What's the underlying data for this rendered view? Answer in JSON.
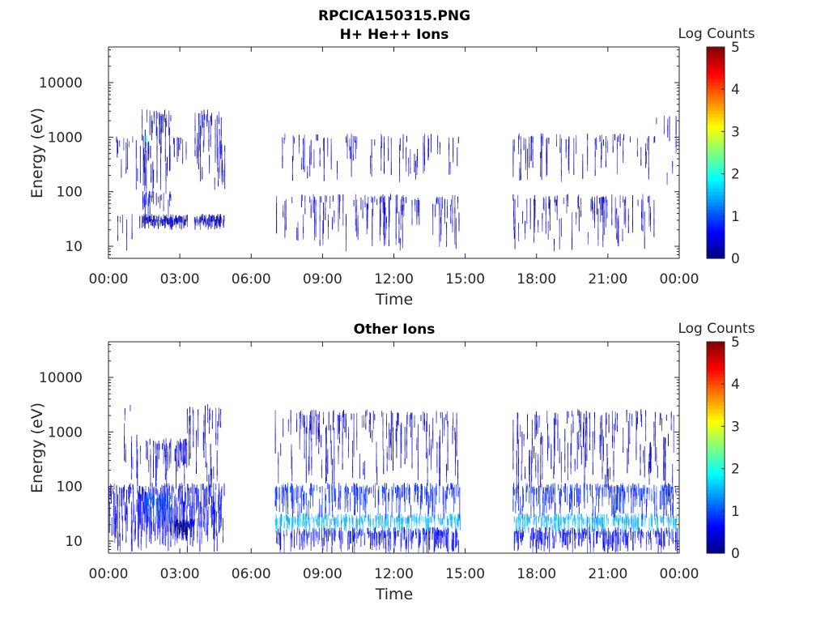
{
  "figure": {
    "title": "RPCICA150315.PNG"
  },
  "chart_data": [
    {
      "type": "heatmap",
      "title": "H+ He++ Ions",
      "xlabel": "Time",
      "ylabel": "Energy (eV)",
      "x_ticks": [
        "00:00",
        "03:00",
        "06:00",
        "09:00",
        "12:00",
        "15:00",
        "18:00",
        "21:00",
        "00:00"
      ],
      "xlim_hours": [
        0,
        24
      ],
      "y_scale": "log",
      "ylim": [
        6,
        45000
      ],
      "y_ticks": [
        10,
        100,
        1000,
        10000
      ],
      "y_tick_labels": [
        "10",
        "100",
        "1000",
        "10000"
      ],
      "colorbar": {
        "label": "Log Counts",
        "range": [
          0,
          5
        ],
        "ticks": [
          "0",
          "1",
          "2",
          "3",
          "4",
          "5"
        ],
        "colormap": "jet"
      },
      "blocks": [
        {
          "t": [
            0.3,
            1.4
          ],
          "e": [
            90,
            800
          ],
          "v": 0.4,
          "density": 0.35
        },
        {
          "t": [
            0.3,
            1.4
          ],
          "e": [
            8,
            30
          ],
          "v": 0.3,
          "density": 0.25
        },
        {
          "t": [
            1.4,
            2.6
          ],
          "e": [
            20,
            30
          ],
          "v": 0.25,
          "density": 0.95
        },
        {
          "t": [
            1.4,
            2.6
          ],
          "e": [
            30,
            80
          ],
          "v": 0.5,
          "density": 0.5
        },
        {
          "t": [
            1.4,
            2.6
          ],
          "e": [
            90,
            2500
          ],
          "v": 0.2,
          "density": 0.75
        },
        {
          "t": [
            1.5,
            1.6
          ],
          "e": [
            500,
            900
          ],
          "v": 2.0,
          "density": 0.8
        },
        {
          "t": [
            2.6,
            3.3
          ],
          "e": [
            20,
            30
          ],
          "v": 0.3,
          "density": 0.9
        },
        {
          "t": [
            2.6,
            3.3
          ],
          "e": [
            300,
            800
          ],
          "v": 0.4,
          "density": 0.3
        },
        {
          "t": [
            3.6,
            4.9
          ],
          "e": [
            20,
            30
          ],
          "v": 0.3,
          "density": 0.9
        },
        {
          "t": [
            3.6,
            4.9
          ],
          "e": [
            100,
            2500
          ],
          "v": 0.3,
          "density": 0.7
        },
        {
          "t": [
            7.0,
            14.8
          ],
          "e": [
            8,
            70
          ],
          "v": 0.35,
          "density": 0.28
        },
        {
          "t": [
            7.0,
            14.8
          ],
          "e": [
            150,
            900
          ],
          "v": 0.3,
          "density": 0.22
        },
        {
          "t": [
            17.0,
            23.0
          ],
          "e": [
            8,
            70
          ],
          "v": 0.35,
          "density": 0.3
        },
        {
          "t": [
            17.0,
            23.0
          ],
          "e": [
            150,
            900
          ],
          "v": 0.3,
          "density": 0.2
        },
        {
          "t": [
            23.0,
            23.9
          ],
          "e": [
            100,
            2000
          ],
          "v": 0.3,
          "density": 0.3
        }
      ]
    },
    {
      "type": "heatmap",
      "title": "Other Ions",
      "xlabel": "Time",
      "ylabel": "Energy (eV)",
      "x_ticks": [
        "00:00",
        "03:00",
        "06:00",
        "09:00",
        "12:00",
        "15:00",
        "18:00",
        "21:00",
        "00:00"
      ],
      "xlim_hours": [
        0,
        24
      ],
      "y_scale": "log",
      "ylim": [
        6,
        45000
      ],
      "y_ticks": [
        10,
        100,
        1000,
        10000
      ],
      "y_tick_labels": [
        "10",
        "100",
        "1000",
        "10000"
      ],
      "colorbar": {
        "label": "Log Counts",
        "range": [
          0,
          5
        ],
        "ticks": [
          "0",
          "1",
          "2",
          "3",
          "4",
          "5"
        ],
        "colormap": "jet"
      },
      "blocks": [
        {
          "t": [
            0.0,
            1.4
          ],
          "e": [
            6,
            90
          ],
          "v": 0.5,
          "density": 0.85
        },
        {
          "t": [
            0.3,
            1.4
          ],
          "e": [
            90,
            2500
          ],
          "v": 0.3,
          "density": 0.3
        },
        {
          "t": [
            1.4,
            3.3
          ],
          "e": [
            6,
            90
          ],
          "v": 0.6,
          "density": 0.95
        },
        {
          "t": [
            1.5,
            2.6
          ],
          "e": [
            20,
            60
          ],
          "v": 1.0,
          "density": 0.85
        },
        {
          "t": [
            1.5,
            3.3
          ],
          "e": [
            90,
            600
          ],
          "v": 0.4,
          "density": 0.6
        },
        {
          "t": [
            2.8,
            3.6
          ],
          "e": [
            10,
            20
          ],
          "v": 0.1,
          "density": 0.9
        },
        {
          "t": [
            3.3,
            4.9
          ],
          "e": [
            6,
            90
          ],
          "v": 0.6,
          "density": 0.9
        },
        {
          "t": [
            3.3,
            4.9
          ],
          "e": [
            90,
            2500
          ],
          "v": 0.3,
          "density": 0.4
        },
        {
          "t": [
            7.0,
            14.8
          ],
          "e": [
            6,
            14
          ],
          "v": 0.6,
          "density": 0.55
        },
        {
          "t": [
            7.0,
            14.8
          ],
          "e": [
            14,
            25
          ],
          "v": 1.5,
          "density": 0.55
        },
        {
          "t": [
            7.0,
            14.8
          ],
          "e": [
            25,
            90
          ],
          "v": 0.8,
          "density": 0.55
        },
        {
          "t": [
            7.0,
            14.8
          ],
          "e": [
            90,
            2000
          ],
          "v": 0.3,
          "density": 0.4
        },
        {
          "t": [
            17.0,
            23.9
          ],
          "e": [
            6,
            14
          ],
          "v": 0.6,
          "density": 0.55
        },
        {
          "t": [
            17.0,
            23.9
          ],
          "e": [
            14,
            25
          ],
          "v": 1.5,
          "density": 0.5
        },
        {
          "t": [
            17.0,
            23.9
          ],
          "e": [
            25,
            90
          ],
          "v": 0.8,
          "density": 0.55
        },
        {
          "t": [
            17.0,
            23.9
          ],
          "e": [
            90,
            2000
          ],
          "v": 0.3,
          "density": 0.4
        }
      ]
    }
  ]
}
